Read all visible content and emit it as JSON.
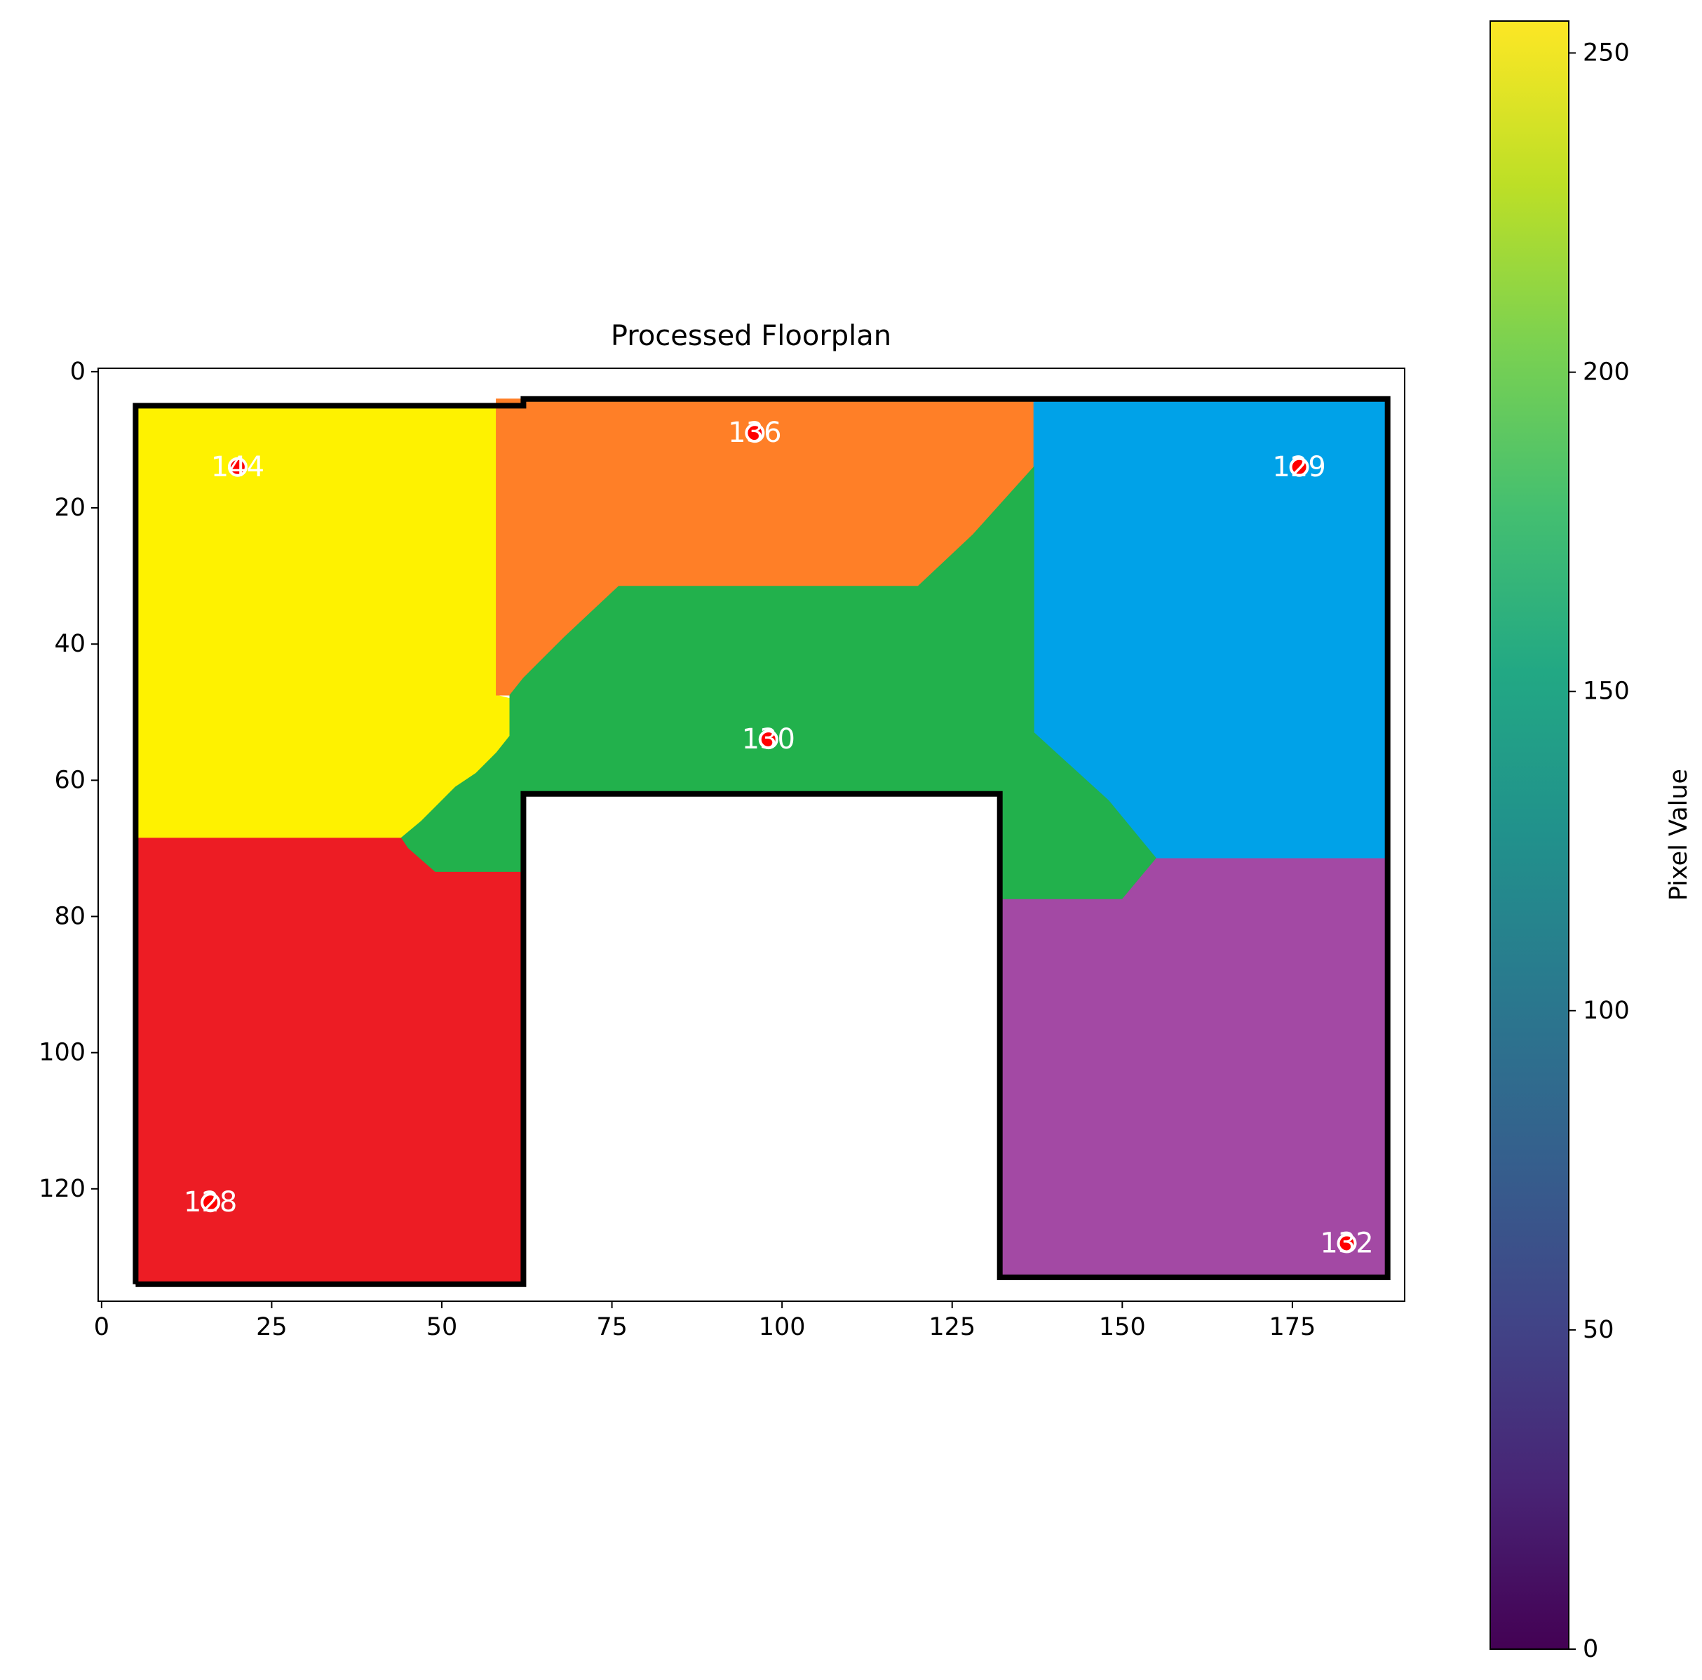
{
  "chart_data": {
    "type": "heatmap",
    "title": "Processed Floorplan",
    "xlabel": "",
    "ylabel": "",
    "xlim": [
      -0.5,
      191.5
    ],
    "ylim": [
      136.5,
      -0.5
    ],
    "x_ticks": [
      0,
      25,
      50,
      75,
      100,
      125,
      150,
      175
    ],
    "y_ticks": [
      0,
      20,
      40,
      60,
      80,
      100,
      120
    ],
    "colorbar": {
      "label": "Pixel Value",
      "range": [
        0,
        255
      ],
      "ticks": [
        0,
        50,
        100,
        150,
        200,
        250
      ],
      "colormap": "viridis"
    },
    "regions": [
      {
        "label": "144",
        "color": "#fef200",
        "points": [
          [
            5,
            5
          ],
          [
            58,
            5
          ],
          [
            58,
            47.5
          ],
          [
            60,
            48
          ],
          [
            60,
            53.5
          ],
          [
            58,
            56
          ],
          [
            55,
            59
          ],
          [
            52,
            61
          ],
          [
            50,
            63
          ],
          [
            47,
            66
          ],
          [
            44,
            68.5
          ],
          [
            5,
            68.5
          ]
        ]
      },
      {
        "label": "136",
        "color": "#ff7f27",
        "points": [
          [
            58,
            4
          ],
          [
            137,
            4
          ],
          [
            137,
            14
          ],
          [
            128,
            24
          ],
          [
            120,
            31.5
          ],
          [
            76,
            31.5
          ],
          [
            68,
            39
          ],
          [
            62,
            45
          ],
          [
            60,
            47.5
          ],
          [
            58,
            47.5
          ]
        ]
      },
      {
        "label": "129",
        "color": "#00a2e8",
        "points": [
          [
            137,
            4
          ],
          [
            189,
            4
          ],
          [
            189,
            71.5
          ],
          [
            155,
            71.5
          ],
          [
            148,
            63
          ],
          [
            137,
            53
          ]
        ]
      },
      {
        "label": "130",
        "color": "#22b14c",
        "points": [
          [
            60,
            47.5
          ],
          [
            62,
            45
          ],
          [
            68,
            39
          ],
          [
            76,
            31.5
          ],
          [
            120,
            31.5
          ],
          [
            128,
            24
          ],
          [
            137,
            14
          ],
          [
            137,
            53
          ],
          [
            148,
            63
          ],
          [
            155,
            71.5
          ],
          [
            150,
            77.5
          ],
          [
            132,
            77.5
          ],
          [
            132,
            62
          ],
          [
            62,
            62
          ],
          [
            62,
            73.5
          ],
          [
            49,
            73.5
          ],
          [
            45,
            70
          ],
          [
            44,
            68.5
          ],
          [
            47,
            66
          ],
          [
            50,
            63
          ],
          [
            52,
            61
          ],
          [
            55,
            59
          ],
          [
            58,
            56
          ],
          [
            60,
            53.5
          ]
        ]
      },
      {
        "label": "128",
        "color": "#ed1c24",
        "points": [
          [
            5,
            68.5
          ],
          [
            44,
            68.5
          ],
          [
            45,
            70
          ],
          [
            49,
            73.5
          ],
          [
            62,
            73.5
          ],
          [
            62,
            134
          ],
          [
            5,
            134
          ]
        ]
      },
      {
        "label": "132",
        "color": "#a349a4",
        "points": [
          [
            132,
            77.5
          ],
          [
            150,
            77.5
          ],
          [
            155,
            71.5
          ],
          [
            189,
            71.5
          ],
          [
            189,
            133
          ],
          [
            132,
            133
          ]
        ]
      }
    ],
    "outline": [
      [
        5,
        134
      ],
      [
        5,
        5
      ],
      [
        62,
        5
      ],
      [
        62,
        4
      ],
      [
        189,
        4
      ],
      [
        189,
        133
      ],
      [
        132,
        133
      ],
      [
        132,
        62
      ],
      [
        62,
        62
      ],
      [
        62,
        134
      ],
      [
        5,
        134
      ]
    ],
    "markers": [
      {
        "label": "144",
        "x": 20,
        "y": 14
      },
      {
        "label": "136",
        "x": 96,
        "y": 9
      },
      {
        "label": "129",
        "x": 176,
        "y": 14
      },
      {
        "label": "130",
        "x": 98,
        "y": 54
      },
      {
        "label": "128",
        "x": 16,
        "y": 122
      },
      {
        "label": "132",
        "x": 183,
        "y": 128
      }
    ]
  }
}
